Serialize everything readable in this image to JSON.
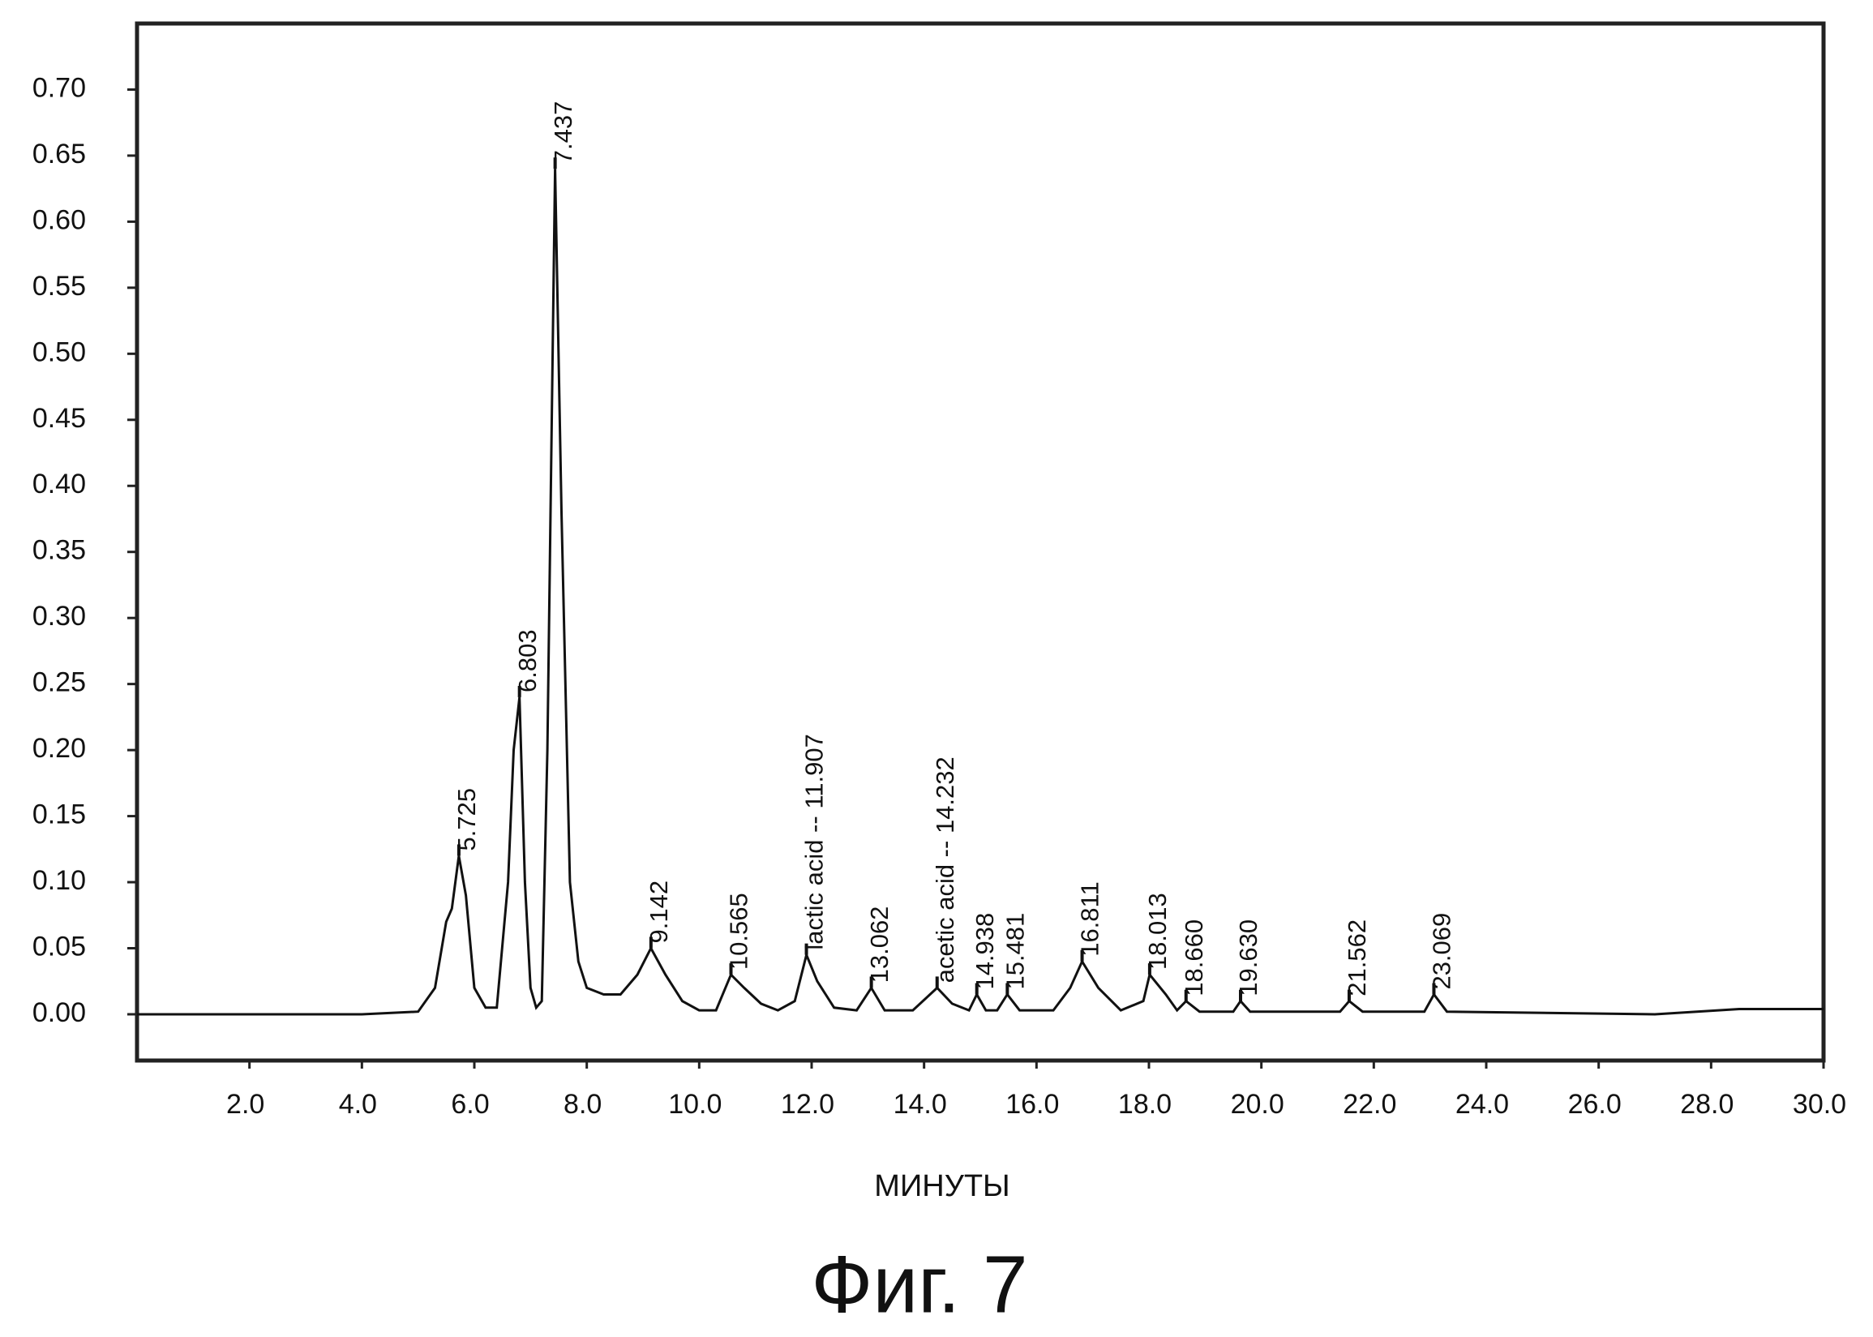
{
  "chart_data": {
    "type": "line",
    "title": "Фиг. 7",
    "x_label": "МИНУТЫ",
    "xlim": [
      0,
      30
    ],
    "ylim": [
      -0.035,
      0.75
    ],
    "xticks": [
      {
        "value": 2,
        "label": "2.0"
      },
      {
        "value": 4,
        "label": "4.0"
      },
      {
        "value": 6,
        "label": "6.0"
      },
      {
        "value": 8,
        "label": "8.0"
      },
      {
        "value": 10,
        "label": "10.0"
      },
      {
        "value": 12,
        "label": "12.0"
      },
      {
        "value": 14,
        "label": "14.0"
      },
      {
        "value": 16,
        "label": "16.0"
      },
      {
        "value": 18,
        "label": "18.0"
      },
      {
        "value": 20,
        "label": "20.0"
      },
      {
        "value": 22,
        "label": "22.0"
      },
      {
        "value": 24,
        "label": "24.0"
      },
      {
        "value": 26,
        "label": "26.0"
      },
      {
        "value": 28,
        "label": "28.0"
      },
      {
        "value": 30,
        "label": "30.0"
      }
    ],
    "yticks": [
      {
        "value": 0,
        "label": "0.00"
      },
      {
        "value": 0.05,
        "label": "0.05"
      },
      {
        "value": 0.1,
        "label": "0.10"
      },
      {
        "value": 0.15,
        "label": "0.15"
      },
      {
        "value": 0.2,
        "label": "0.20"
      },
      {
        "value": 0.25,
        "label": "0.25"
      },
      {
        "value": 0.3,
        "label": "0.30"
      },
      {
        "value": 0.35,
        "label": "0.35"
      },
      {
        "value": 0.4,
        "label": "0.40"
      },
      {
        "value": 0.45,
        "label": "0.45"
      },
      {
        "value": 0.5,
        "label": "0.50"
      },
      {
        "value": 0.55,
        "label": "0.55"
      },
      {
        "value": 0.6,
        "label": "0.60"
      },
      {
        "value": 0.65,
        "label": "0.65"
      },
      {
        "value": 0.7,
        "label": "0.70"
      }
    ],
    "x": [
      0,
      4.0,
      5.0,
      5.3,
      5.5,
      5.6,
      5.725,
      5.85,
      6.0,
      6.2,
      6.4,
      6.6,
      6.7,
      6.803,
      6.9,
      7.0,
      7.1,
      7.2,
      7.3,
      7.437,
      7.55,
      7.7,
      7.85,
      8.0,
      8.3,
      8.6,
      8.9,
      9.142,
      9.4,
      9.7,
      10.0,
      10.3,
      10.565,
      10.8,
      11.1,
      11.4,
      11.7,
      11.907,
      12.1,
      12.4,
      12.8,
      13.062,
      13.3,
      13.8,
      14.232,
      14.5,
      14.8,
      14.938,
      15.1,
      15.3,
      15.481,
      15.7,
      16.3,
      16.6,
      16.811,
      17.1,
      17.5,
      17.9,
      18.013,
      18.3,
      18.5,
      18.66,
      18.9,
      19.5,
      19.63,
      19.8,
      21.4,
      21.562,
      21.8,
      22.9,
      23.069,
      23.3,
      27,
      28.5,
      30
    ],
    "series": [
      {
        "color": "#111111",
        "values": [
          0,
          0,
          0.002,
          0.02,
          0.07,
          0.08,
          0.12,
          0.09,
          0.02,
          0.005,
          0.005,
          0.1,
          0.2,
          0.24,
          0.1,
          0.02,
          0.005,
          0.01,
          0.2,
          0.64,
          0.38,
          0.1,
          0.04,
          0.02,
          0.015,
          0.015,
          0.03,
          0.05,
          0.03,
          0.01,
          0.003,
          0.003,
          0.03,
          0.02,
          0.008,
          0.003,
          0.01,
          0.045,
          0.025,
          0.005,
          0.003,
          0.02,
          0.003,
          0.003,
          0.02,
          0.008,
          0.003,
          0.015,
          0.003,
          0.003,
          0.015,
          0.003,
          0.003,
          0.02,
          0.04,
          0.02,
          0.003,
          0.01,
          0.03,
          0.015,
          0.003,
          0.01,
          0.002,
          0.002,
          0.01,
          0.002,
          0.002,
          0.01,
          0.002,
          0.002,
          0.015,
          0.002,
          0,
          0.004,
          0.004
        ]
      }
    ],
    "annotations": [
      {
        "text": "5.725",
        "x": 5.725,
        "y": 0.12
      },
      {
        "text": "6.803",
        "x": 6.803,
        "y": 0.24
      },
      {
        "text": "7.437",
        "x": 7.437,
        "y": 0.64
      },
      {
        "text": "9.142",
        "x": 9.142,
        "y": 0.05
      },
      {
        "text": "10.565",
        "x": 10.565,
        "y": 0.03
      },
      {
        "text": "lactic acid -- 11.907",
        "x": 11.907,
        "y": 0.045
      },
      {
        "text": "13.062",
        "x": 13.062,
        "y": 0.02
      },
      {
        "text": "acetic acid -- 14.232",
        "x": 14.232,
        "y": 0.02
      },
      {
        "text": "14.938",
        "x": 14.938,
        "y": 0.015
      },
      {
        "text": "15.481",
        "x": 15.481,
        "y": 0.015
      },
      {
        "text": "16.811",
        "x": 16.811,
        "y": 0.04
      },
      {
        "text": "18.013",
        "x": 18.013,
        "y": 0.03
      },
      {
        "text": "18.660",
        "x": 18.66,
        "y": 0.01
      },
      {
        "text": "19.630",
        "x": 19.63,
        "y": 0.01
      },
      {
        "text": "21.562",
        "x": 21.562,
        "y": 0.01
      },
      {
        "text": "23.069",
        "x": 23.069,
        "y": 0.015
      }
    ]
  }
}
